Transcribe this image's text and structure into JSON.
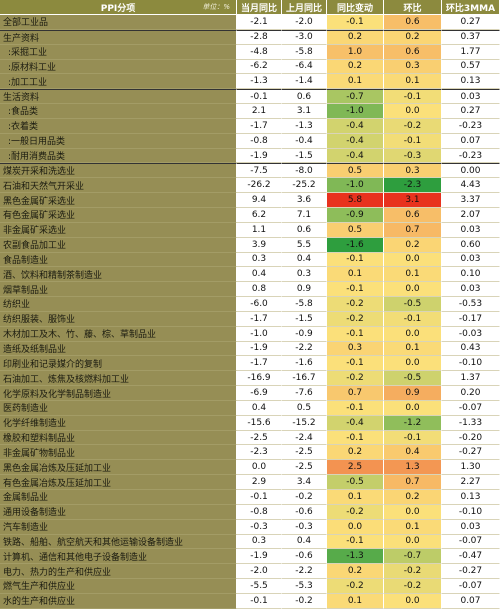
{
  "chart_data": {
    "type": "table",
    "columns": [
      "PPI分项",
      "当月同比",
      "上月同比",
      "同比变动",
      "环比",
      "环比3MMA"
    ],
    "unit": "单位：%",
    "rows": [
      {
        "name": "全部工业品",
        "values": [
          "-2.1",
          "-2.0",
          "-0.1",
          "0.6",
          "0.27"
        ]
      },
      {
        "name": "生产资料",
        "values": [
          "-2.8",
          "-3.0",
          "0.2",
          "0.2",
          "0.37"
        ]
      },
      {
        "name": ":采掘工业",
        "values": [
          "-4.8",
          "-5.8",
          "1.0",
          "0.6",
          "1.77"
        ]
      },
      {
        "name": ":原材料工业",
        "values": [
          "-6.2",
          "-6.4",
          "0.2",
          "0.3",
          "0.57"
        ]
      },
      {
        "name": ":加工工业",
        "values": [
          "-1.3",
          "-1.4",
          "0.1",
          "0.1",
          "0.13"
        ]
      },
      {
        "name": "生活资料",
        "values": [
          "-0.1",
          "0.6",
          "-0.7",
          "-0.1",
          "0.03"
        ]
      },
      {
        "name": ":食品类",
        "values": [
          "2.1",
          "3.1",
          "-1.0",
          "0.0",
          "0.27"
        ]
      },
      {
        "name": ":衣着类",
        "values": [
          "-1.7",
          "-1.3",
          "-0.4",
          "-0.2",
          "-0.23"
        ]
      },
      {
        "name": ":一般日用品类",
        "values": [
          "-0.8",
          "-0.4",
          "-0.4",
          "-0.1",
          "0.07"
        ]
      },
      {
        "name": ":耐用消费品类",
        "values": [
          "-1.9",
          "-1.5",
          "-0.4",
          "-0.3",
          "-0.23"
        ]
      },
      {
        "name": "煤炭开采和洗选业",
        "values": [
          "-7.5",
          "-8.0",
          "0.5",
          "0.3",
          "0.00"
        ]
      },
      {
        "name": "石油和天然气开采业",
        "values": [
          "-26.2",
          "-25.2",
          "-1.0",
          "-2.3",
          "4.43"
        ]
      },
      {
        "name": "黑色金属矿采选业",
        "values": [
          "9.4",
          "3.6",
          "5.8",
          "3.1",
          "3.37"
        ]
      },
      {
        "name": "有色金属矿采选业",
        "values": [
          "6.2",
          "7.1",
          "-0.9",
          "0.6",
          "2.07"
        ]
      },
      {
        "name": "非金属矿采选业",
        "values": [
          "1.1",
          "0.6",
          "0.5",
          "0.7",
          "0.03"
        ]
      },
      {
        "name": "农副食品加工业",
        "values": [
          "3.9",
          "5.5",
          "-1.6",
          "0.2",
          "0.60"
        ]
      },
      {
        "name": "食品制造业",
        "values": [
          "0.3",
          "0.4",
          "-0.1",
          "0.0",
          "0.03"
        ]
      },
      {
        "name": "酒、饮料和精制茶制造业",
        "values": [
          "0.4",
          "0.3",
          "0.1",
          "0.1",
          "0.10"
        ]
      },
      {
        "name": "烟草制品业",
        "values": [
          "0.8",
          "0.9",
          "-0.1",
          "0.0",
          "0.03"
        ]
      },
      {
        "name": "纺织业",
        "values": [
          "-6.0",
          "-5.8",
          "-0.2",
          "-0.5",
          "-0.53"
        ]
      },
      {
        "name": "纺织服装、服饰业",
        "values": [
          "-1.7",
          "-1.5",
          "-0.2",
          "-0.1",
          "-0.17"
        ]
      },
      {
        "name": "木材加工及木、竹、藤、棕、草制品业",
        "values": [
          "-1.0",
          "-0.9",
          "-0.1",
          "0.0",
          "-0.03"
        ]
      },
      {
        "name": "造纸及纸制品业",
        "values": [
          "-1.9",
          "-2.2",
          "0.3",
          "0.1",
          "0.43"
        ]
      },
      {
        "name": "印刷业和记录媒介的复制",
        "values": [
          "-1.7",
          "-1.6",
          "-0.1",
          "0.0",
          "-0.10"
        ]
      },
      {
        "name": "石油加工、炼焦及核燃料加工业",
        "values": [
          "-16.9",
          "-16.7",
          "-0.2",
          "-0.5",
          "1.37"
        ]
      },
      {
        "name": "化学原料及化学制品制造业",
        "values": [
          "-6.9",
          "-7.6",
          "0.7",
          "0.9",
          "0.20"
        ]
      },
      {
        "name": "医药制造业",
        "values": [
          "0.4",
          "0.5",
          "-0.1",
          "0.0",
          "-0.07"
        ]
      },
      {
        "name": "化学纤维制造业",
        "values": [
          "-15.6",
          "-15.2",
          "-0.4",
          "-1.2",
          "-1.33"
        ]
      },
      {
        "name": "橡胶和塑料制品业",
        "values": [
          "-2.5",
          "-2.4",
          "-0.1",
          "-0.1",
          "-0.20"
        ]
      },
      {
        "name": "非金属矿物制品业",
        "values": [
          "-2.3",
          "-2.5",
          "0.2",
          "0.4",
          "-0.27"
        ]
      },
      {
        "name": "黑色金属冶炼及压延加工业",
        "values": [
          "0.0",
          "-2.5",
          "2.5",
          "1.3",
          "1.30"
        ]
      },
      {
        "name": "有色金属冶炼及压延加工业",
        "values": [
          "2.9",
          "3.4",
          "-0.5",
          "0.7",
          "2.27"
        ]
      },
      {
        "name": "金属制品业",
        "values": [
          "-0.1",
          "-0.2",
          "0.1",
          "0.2",
          "0.13"
        ]
      },
      {
        "name": "通用设备制造业",
        "values": [
          "-0.8",
          "-0.6",
          "-0.2",
          "0.0",
          "-0.10"
        ]
      },
      {
        "name": "汽车制造业",
        "values": [
          "-0.3",
          "-0.3",
          "0.0",
          "0.1",
          "0.03"
        ]
      },
      {
        "name": "铁路、船舶、航空航天和其他运输设备制造业",
        "values": [
          "0.3",
          "0.4",
          "-0.1",
          "0.0",
          "-0.07"
        ]
      },
      {
        "name": "计算机、通信和其他电子设备制造业",
        "values": [
          "-1.9",
          "-0.6",
          "-1.3",
          "-0.7",
          "-0.47"
        ]
      },
      {
        "name": "电力、热力的生产和供应业",
        "values": [
          "-2.0",
          "-2.2",
          "0.2",
          "-0.2",
          "-0.27"
        ]
      },
      {
        "name": "燃气生产和供应业",
        "values": [
          "-5.5",
          "-5.3",
          "-0.2",
          "-0.2",
          "-0.07"
        ]
      },
      {
        "name": "水的生产和供应业",
        "values": [
          "-0.1",
          "-0.2",
          "0.1",
          "0.0",
          "0.07"
        ]
      }
    ],
    "highlight_columns": [
      2,
      3
    ],
    "colors": {
      "header_bg": "#8c8a3e",
      "label_bg": "#968e55",
      "high": "#e8321e",
      "mid": "#fbe07a",
      "low": "#2e9e3e"
    }
  }
}
